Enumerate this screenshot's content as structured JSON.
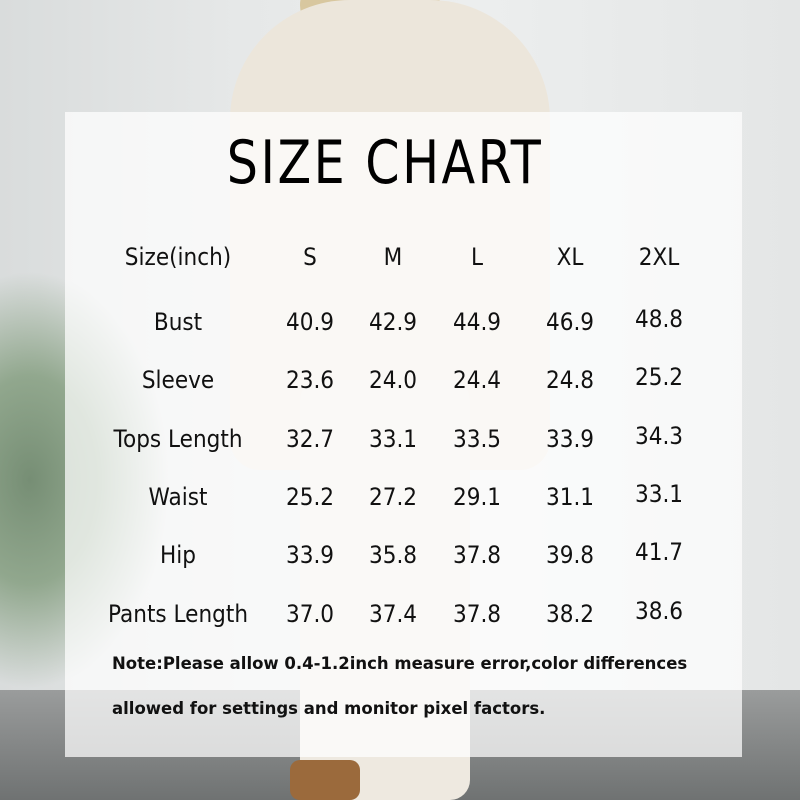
{
  "title": "SIZE CHART",
  "table": {
    "header_label": "Size(inch)",
    "columns": [
      "S",
      "M",
      "L",
      "XL",
      "2XL"
    ],
    "rows": [
      {
        "label": "Bust",
        "values": [
          "40.9",
          "42.9",
          "44.9",
          "46.9",
          "48.8"
        ]
      },
      {
        "label": "Sleeve",
        "values": [
          "23.6",
          "24.0",
          "24.4",
          "24.8",
          "25.2"
        ]
      },
      {
        "label": "Tops Length",
        "values": [
          "32.7",
          "33.1",
          "33.5",
          "33.9",
          "34.3"
        ]
      },
      {
        "label": "Waist",
        "values": [
          "25.2",
          "27.2",
          "29.1",
          "31.1",
          "33.1"
        ]
      },
      {
        "label": "Hip",
        "values": [
          "33.9",
          "35.8",
          "37.8",
          "39.8",
          "41.7"
        ]
      },
      {
        "label": "Pants Length",
        "values": [
          "37.0",
          "37.4",
          "37.8",
          "38.2",
          "38.6"
        ]
      }
    ]
  },
  "note": {
    "line1": "Note:Please allow 0.4-1.2inch measure error,color differences",
    "line2": "allowed for settings and monitor pixel factors."
  }
}
